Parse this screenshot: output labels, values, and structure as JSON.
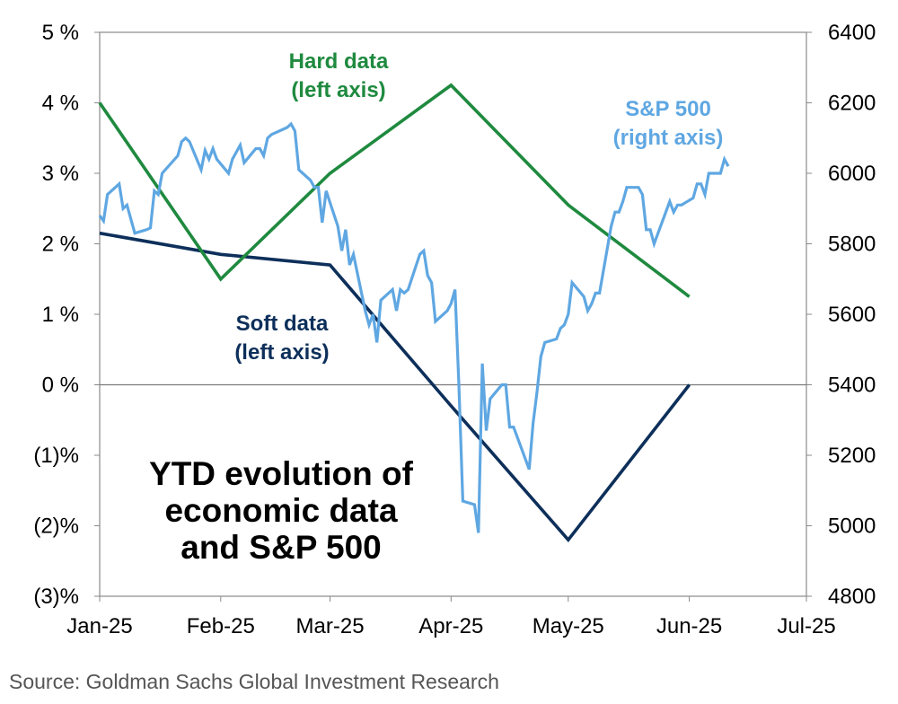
{
  "chart_data": {
    "type": "line",
    "title_lines": [
      "YTD evolution of",
      "economic data",
      "and S&P 500"
    ],
    "source": "Source: Goldman Sachs Global Investment Research",
    "x_tick_labels": [
      "Jan-25",
      "Feb-25",
      "Mar-25",
      "Apr-25",
      "May-25",
      "Jun-25",
      "Jul-25"
    ],
    "left_axis": {
      "ylim": [
        -3,
        5
      ],
      "tick_values": [
        5,
        4,
        3,
        2,
        1,
        0,
        -1,
        -2,
        -3
      ],
      "tick_labels": [
        "5 %",
        "4 %",
        "3 %",
        "2 %",
        "1 %",
        "0 %",
        "(1)%",
        "(2)%",
        "(3)%"
      ]
    },
    "right_axis": {
      "ylim": [
        4800,
        6400
      ],
      "tick_values": [
        6400,
        6200,
        6000,
        5800,
        5600,
        5400,
        5200,
        5000,
        4800
      ],
      "tick_labels": [
        "6400",
        "6200",
        "6000",
        "5800",
        "5600",
        "5400",
        "5200",
        "5000",
        "4800"
      ]
    },
    "series": [
      {
        "name_lines": [
          "Hard data",
          "(left axis)"
        ],
        "axis": "left",
        "color": "#1f8a3f",
        "points": [
          [
            "2025-01-01",
            4.0
          ],
          [
            "2025-02-01",
            1.5
          ],
          [
            "2025-03-01",
            3.0
          ],
          [
            "2025-04-01",
            4.25
          ],
          [
            "2025-05-01",
            2.55
          ],
          [
            "2025-06-01",
            1.25
          ]
        ]
      },
      {
        "name_lines": [
          "Soft data",
          "(left axis)"
        ],
        "axis": "left",
        "color": "#0d2f5a",
        "points": [
          [
            "2025-01-01",
            2.15
          ],
          [
            "2025-02-01",
            1.85
          ],
          [
            "2025-03-01",
            1.7
          ],
          [
            "2025-04-01",
            -0.3
          ],
          [
            "2025-05-01",
            -2.2
          ],
          [
            "2025-06-01",
            0.0
          ]
        ]
      },
      {
        "name_lines": [
          "S&P 500",
          "(right axis)"
        ],
        "axis": "right",
        "color": "#5fa7e2",
        "points": [
          [
            "2025-01-01",
            5880
          ],
          [
            "2025-01-02",
            5865
          ],
          [
            "2025-01-03",
            5940
          ],
          [
            "2025-01-06",
            5970
          ],
          [
            "2025-01-07",
            5900
          ],
          [
            "2025-01-08",
            5910
          ],
          [
            "2025-01-10",
            5830
          ],
          [
            "2025-01-13",
            5840
          ],
          [
            "2025-01-14",
            5845
          ],
          [
            "2025-01-15",
            5950
          ],
          [
            "2025-01-16",
            5940
          ],
          [
            "2025-01-17",
            6000
          ],
          [
            "2025-01-21",
            6050
          ],
          [
            "2025-01-22",
            6090
          ],
          [
            "2025-01-23",
            6100
          ],
          [
            "2025-01-24",
            6090
          ],
          [
            "2025-01-27",
            6010
          ],
          [
            "2025-01-28",
            6065
          ],
          [
            "2025-01-29",
            6040
          ],
          [
            "2025-01-30",
            6070
          ],
          [
            "2025-01-31",
            6040
          ],
          [
            "2025-02-03",
            6000
          ],
          [
            "2025-02-04",
            6040
          ],
          [
            "2025-02-05",
            6060
          ],
          [
            "2025-02-06",
            6080
          ],
          [
            "2025-02-07",
            6030
          ],
          [
            "2025-02-10",
            6070
          ],
          [
            "2025-02-11",
            6070
          ],
          [
            "2025-02-12",
            6050
          ],
          [
            "2025-02-13",
            6100
          ],
          [
            "2025-02-14",
            6110
          ],
          [
            "2025-02-18",
            6130
          ],
          [
            "2025-02-19",
            6140
          ],
          [
            "2025-02-20",
            6120
          ],
          [
            "2025-02-21",
            6010
          ],
          [
            "2025-02-24",
            5980
          ],
          [
            "2025-02-25",
            5960
          ],
          [
            "2025-02-26",
            5960
          ],
          [
            "2025-02-27",
            5860
          ],
          [
            "2025-02-28",
            5950
          ],
          [
            "2025-03-03",
            5850
          ],
          [
            "2025-03-04",
            5780
          ],
          [
            "2025-03-05",
            5840
          ],
          [
            "2025-03-06",
            5740
          ],
          [
            "2025-03-07",
            5770
          ],
          [
            "2025-03-10",
            5610
          ],
          [
            "2025-03-11",
            5570
          ],
          [
            "2025-03-12",
            5600
          ],
          [
            "2025-03-13",
            5520
          ],
          [
            "2025-03-14",
            5640
          ],
          [
            "2025-03-17",
            5670
          ],
          [
            "2025-03-18",
            5610
          ],
          [
            "2025-03-19",
            5670
          ],
          [
            "2025-03-20",
            5660
          ],
          [
            "2025-03-21",
            5670
          ],
          [
            "2025-03-24",
            5770
          ],
          [
            "2025-03-25",
            5780
          ],
          [
            "2025-03-26",
            5710
          ],
          [
            "2025-03-27",
            5690
          ],
          [
            "2025-03-28",
            5580
          ],
          [
            "2025-03-31",
            5610
          ],
          [
            "2025-04-01",
            5630
          ],
          [
            "2025-04-02",
            5670
          ],
          [
            "2025-04-03",
            5400
          ],
          [
            "2025-04-04",
            5070
          ],
          [
            "2025-04-07",
            5060
          ],
          [
            "2025-04-08",
            4980
          ],
          [
            "2025-04-09",
            5460
          ],
          [
            "2025-04-10",
            5270
          ],
          [
            "2025-04-11",
            5360
          ],
          [
            "2025-04-14",
            5400
          ],
          [
            "2025-04-15",
            5400
          ],
          [
            "2025-04-16",
            5280
          ],
          [
            "2025-04-17",
            5280
          ],
          [
            "2025-04-21",
            5160
          ],
          [
            "2025-04-22",
            5290
          ],
          [
            "2025-04-23",
            5380
          ],
          [
            "2025-04-24",
            5480
          ],
          [
            "2025-04-25",
            5520
          ],
          [
            "2025-04-28",
            5530
          ],
          [
            "2025-04-29",
            5560
          ],
          [
            "2025-04-30",
            5570
          ],
          [
            "2025-05-01",
            5600
          ],
          [
            "2025-05-02",
            5690
          ],
          [
            "2025-05-05",
            5650
          ],
          [
            "2025-05-06",
            5610
          ],
          [
            "2025-05-07",
            5630
          ],
          [
            "2025-05-08",
            5660
          ],
          [
            "2025-05-09",
            5660
          ],
          [
            "2025-05-12",
            5850
          ],
          [
            "2025-05-13",
            5890
          ],
          [
            "2025-05-14",
            5890
          ],
          [
            "2025-05-15",
            5920
          ],
          [
            "2025-05-16",
            5960
          ],
          [
            "2025-05-19",
            5960
          ],
          [
            "2025-05-20",
            5940
          ],
          [
            "2025-05-21",
            5840
          ],
          [
            "2025-05-22",
            5840
          ],
          [
            "2025-05-23",
            5800
          ],
          [
            "2025-05-27",
            5920
          ],
          [
            "2025-05-28",
            5890
          ],
          [
            "2025-05-29",
            5910
          ],
          [
            "2025-05-30",
            5910
          ],
          [
            "2025-06-02",
            5930
          ],
          [
            "2025-06-03",
            5970
          ],
          [
            "2025-06-04",
            5970
          ],
          [
            "2025-06-05",
            5940
          ],
          [
            "2025-06-06",
            6000
          ],
          [
            "2025-06-09",
            6000
          ],
          [
            "2025-06-10",
            6040
          ],
          [
            "2025-06-11",
            6020
          ]
        ]
      }
    ]
  }
}
